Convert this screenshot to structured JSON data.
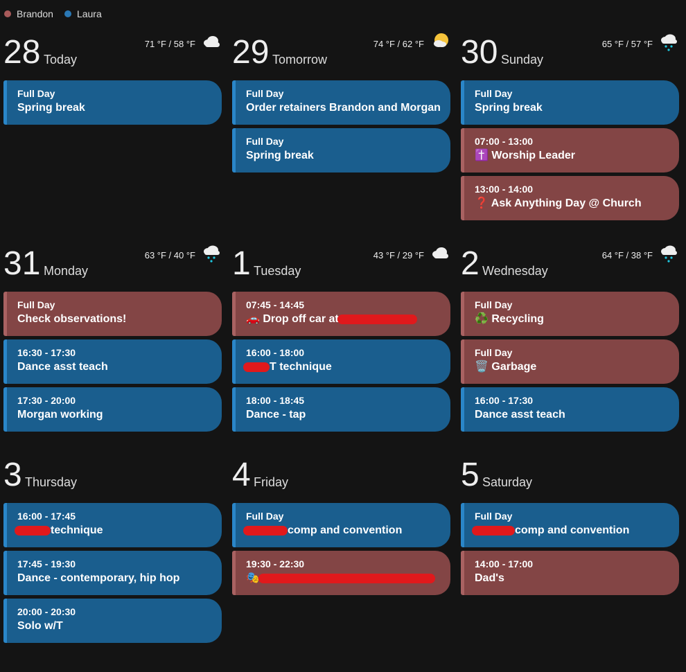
{
  "legend": [
    {
      "name": "Brandon",
      "color": "#a85a5a"
    },
    {
      "name": "Laura",
      "color": "#2a78b5"
    }
  ],
  "colors": {
    "background": "#141414",
    "laura": "#1a5e8e",
    "brandon": "#834545",
    "redaction": "#e0191c"
  },
  "days": [
    {
      "num": "28",
      "label": "Today",
      "temp": "71 °F / 58 °F",
      "weather": "cloudy-icon",
      "events": [
        {
          "time": "Full Day",
          "name": "Spring break",
          "who": "laura"
        }
      ]
    },
    {
      "num": "29",
      "label": "Tomorrow",
      "temp": "74 °F / 62 °F",
      "weather": "partly-sunny-icon",
      "events": [
        {
          "time": "Full Day",
          "name": "Order retainers Brandon and Morgan",
          "who": "laura"
        },
        {
          "time": "Full Day",
          "name": "Spring break",
          "who": "laura"
        }
      ]
    },
    {
      "num": "30",
      "label": "Sunday",
      "temp": "65 °F / 57 °F",
      "weather": "rain-icon",
      "events": [
        {
          "time": "Full Day",
          "name": "Spring break",
          "who": "laura"
        },
        {
          "time": "07:00 - 13:00",
          "name": "✝️ Worship Leader",
          "who": "brandon"
        },
        {
          "time": "13:00 - 14:00",
          "name": "❓ Ask Anything Day @ Church",
          "who": "brandon"
        }
      ]
    },
    {
      "num": "31",
      "label": "Monday",
      "temp": "63 °F / 40 °F",
      "weather": "rain-icon",
      "events": [
        {
          "time": "Full Day",
          "name": "Check observations!",
          "who": "brandon"
        },
        {
          "time": "16:30 - 17:30",
          "name": "Dance asst teach",
          "who": "laura"
        },
        {
          "time": "17:30 - 20:00",
          "name": "Morgan working",
          "who": "laura"
        }
      ]
    },
    {
      "num": "1",
      "label": "Tuesday",
      "temp": "43 °F / 29 °F",
      "weather": "cloudy-icon",
      "events": [
        {
          "time": "07:45 - 14:45",
          "name": "🚗 Drop off car at",
          "who": "brandon",
          "redact_after": 115
        },
        {
          "time": "16:00 - 18:00",
          "name": "T technique",
          "who": "laura",
          "redact_before": 38
        },
        {
          "time": "18:00 - 18:45",
          "name": "Dance - tap",
          "who": "laura"
        }
      ]
    },
    {
      "num": "2",
      "label": "Wednesday",
      "temp": "64 °F / 38 °F",
      "weather": "rain-icon",
      "events": [
        {
          "time": "Full Day",
          "name": "♻️ Recycling",
          "who": "brandon"
        },
        {
          "time": "Full Day",
          "name": "🗑️ Garbage",
          "who": "brandon"
        },
        {
          "time": "16:00 - 17:30",
          "name": "Dance asst teach",
          "who": "laura"
        }
      ]
    },
    {
      "num": "3",
      "label": "Thursday",
      "temp": "",
      "weather": "",
      "events": [
        {
          "time": "16:00 - 17:45",
          "name": "technique",
          "who": "laura",
          "redact_before": 52
        },
        {
          "time": "17:45 - 19:30",
          "name": "Dance - contemporary, hip hop",
          "who": "laura"
        },
        {
          "time": "20:00 - 20:30",
          "name": "Solo w/T",
          "who": "laura"
        }
      ]
    },
    {
      "num": "4",
      "label": "Friday",
      "temp": "",
      "weather": "",
      "events": [
        {
          "time": "Full Day",
          "name": "comp and convention",
          "who": "laura",
          "redact_before": 64
        },
        {
          "time": "19:30 - 22:30",
          "name": "🎭",
          "who": "brandon",
          "redact_after": 255
        }
      ]
    },
    {
      "num": "5",
      "label": "Saturday",
      "temp": "",
      "weather": "",
      "events": [
        {
          "time": "Full Day",
          "name": "comp and convention",
          "who": "laura",
          "redact_before": 62
        },
        {
          "time": "14:00 - 17:00",
          "name": "Dad's",
          "who": "brandon"
        }
      ]
    }
  ]
}
